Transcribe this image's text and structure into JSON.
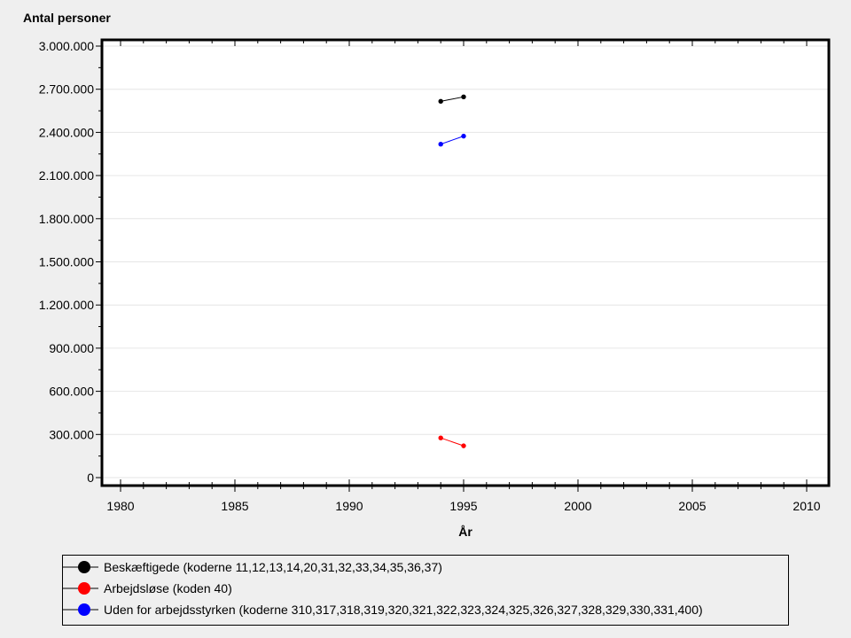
{
  "chart_data": {
    "type": "line",
    "ylabel": "Antal personer",
    "xlabel": "År",
    "xlim": [
      1979.2,
      2010.9
    ],
    "ylim": [
      0,
      3000000
    ],
    "x_ticks": [
      1980,
      1985,
      1990,
      1995,
      2000,
      2005,
      2010
    ],
    "y_ticks": [
      0,
      300000,
      600000,
      900000,
      1200000,
      1500000,
      1800000,
      2100000,
      2400000,
      2700000,
      3000000
    ],
    "y_tick_labels": [
      "0",
      "300.000",
      "600.000",
      "900.000",
      "1.200.000",
      "1.500.000",
      "1.800.000",
      "2.100.000",
      "2.400.000",
      "2.700.000",
      "3.000.000"
    ],
    "grid": true,
    "legend_placement": "bottom",
    "series": [
      {
        "name": "Beskæftigede (koderne 11,12,13,14,20,31,32,33,34,35,36,37)",
        "color": "#000000",
        "x": [
          1994,
          1995
        ],
        "y": [
          2616000,
          2647000
        ]
      },
      {
        "name": "Arbejdsløse (koden 40)",
        "color": "#ff0000",
        "x": [
          1994,
          1995
        ],
        "y": [
          276000,
          221000
        ]
      },
      {
        "name": "Uden for arbejdsstyrken (koderne 310,317,318,319,320,321,322,323,324,325,326,327,328,329,330,331,400)",
        "color": "#0000ff",
        "x": [
          1994,
          1995
        ],
        "y": [
          2318000,
          2374000
        ]
      }
    ]
  }
}
